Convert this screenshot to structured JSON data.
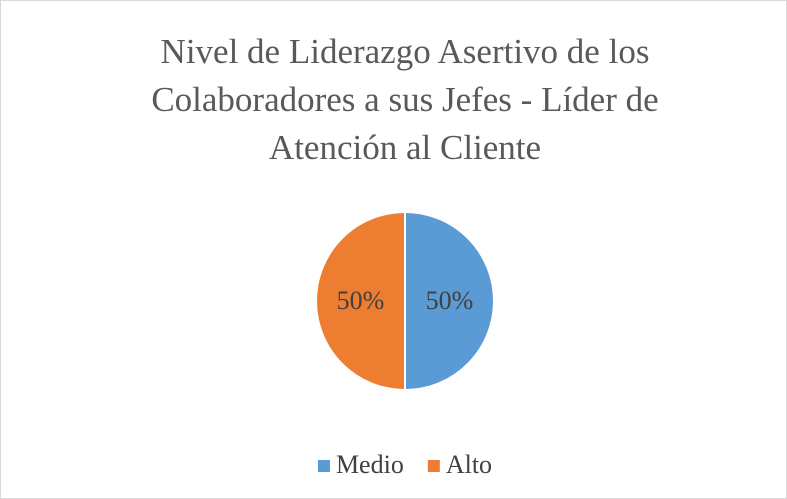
{
  "chart_data": {
    "type": "pie",
    "title": "Nivel de Liderazgo Asertivo de los Colaboradores a sus Jefes - Líder de Atención al Cliente",
    "categories": [
      "Medio",
      "Alto"
    ],
    "values": [
      50,
      50
    ],
    "value_labels": [
      "50%",
      "50%"
    ],
    "colors": [
      "#5b9bd5",
      "#ed7d31"
    ],
    "legend": "bottom"
  }
}
